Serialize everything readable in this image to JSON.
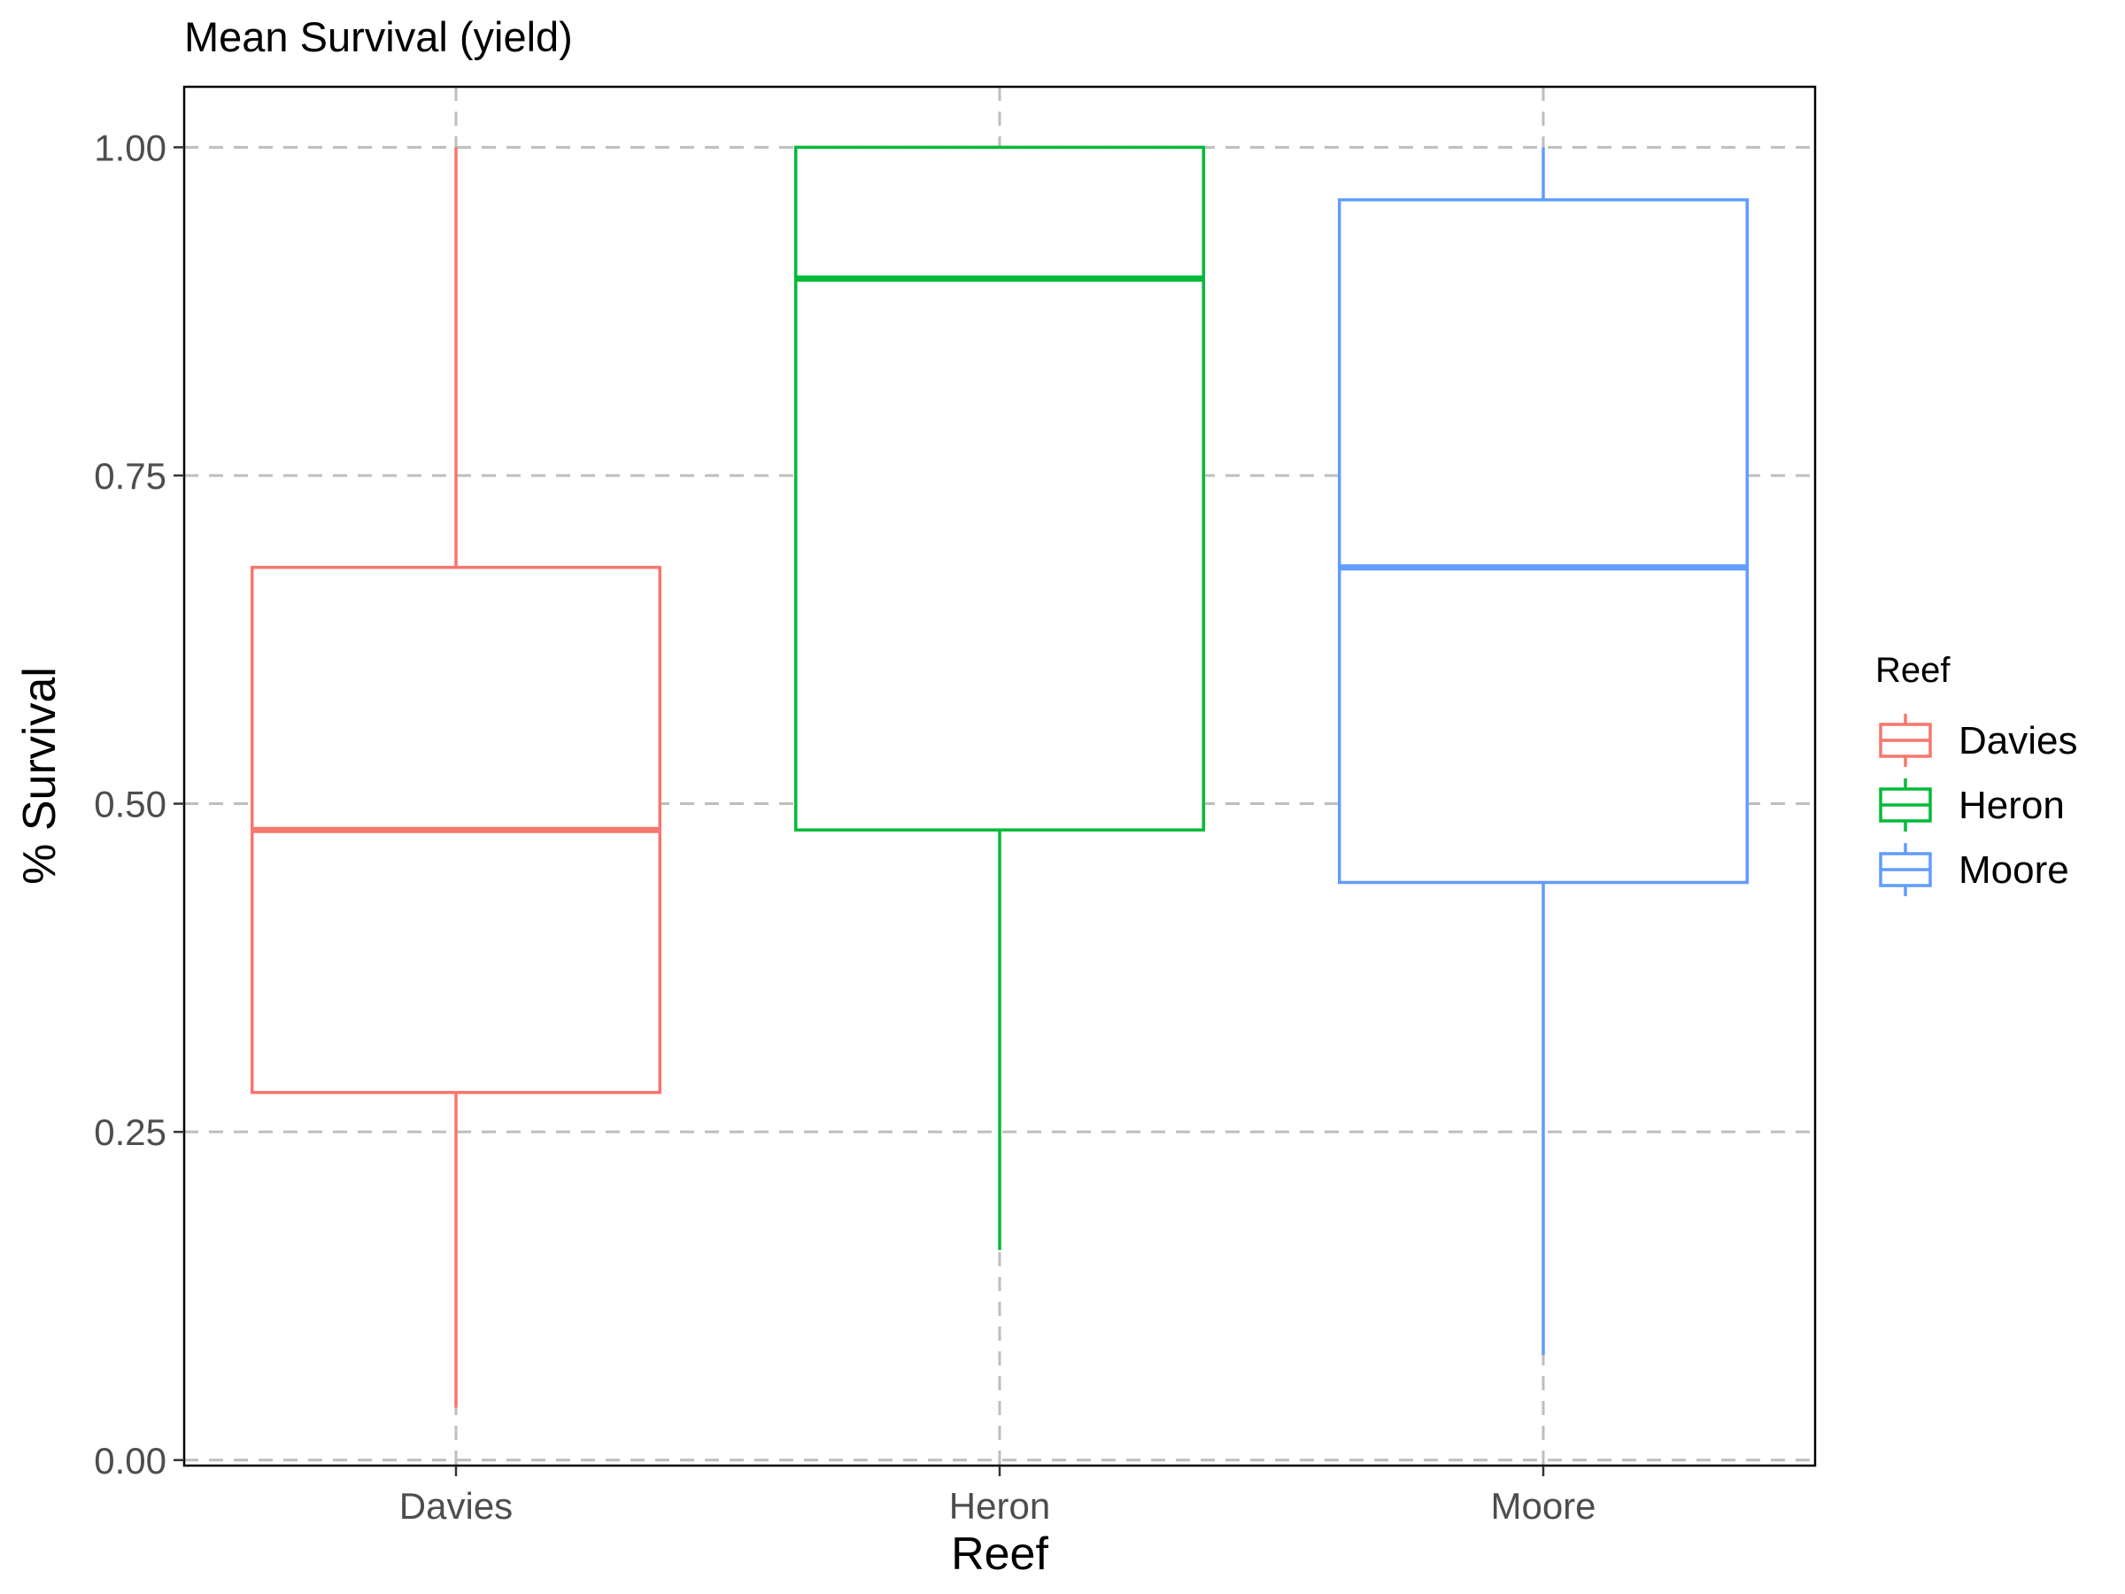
{
  "chart_data": {
    "type": "boxplot",
    "title": "Mean Survival (yield)",
    "xlabel": "Reef",
    "ylabel": "% Survival",
    "categories": [
      "Davies",
      "Heron",
      "Moore"
    ],
    "ylim": [
      -0.0042,
      1.0461
    ],
    "yticks": [
      0.0,
      0.25,
      0.5,
      0.75,
      1.0
    ],
    "ytick_labels": [
      "0.00",
      "0.25",
      "0.50",
      "0.75",
      "1.00"
    ],
    "grid": true,
    "boxes": [
      {
        "name": "Davies",
        "color": "#F8766D",
        "min": 0.04,
        "q1": 0.28,
        "median": 0.48,
        "q3": 0.68,
        "max": 1.0
      },
      {
        "name": "Heron",
        "color": "#00BA38",
        "min": 0.16,
        "q1": 0.48,
        "median": 0.9,
        "q3": 1.0,
        "max": 1.0
      },
      {
        "name": "Moore",
        "color": "#619CFF",
        "min": 0.08,
        "q1": 0.44,
        "median": 0.68,
        "q3": 0.96,
        "max": 1.0
      }
    ],
    "legend": {
      "title": "Reef",
      "position": "right",
      "entries": [
        "Davies",
        "Heron",
        "Moore"
      ]
    }
  }
}
